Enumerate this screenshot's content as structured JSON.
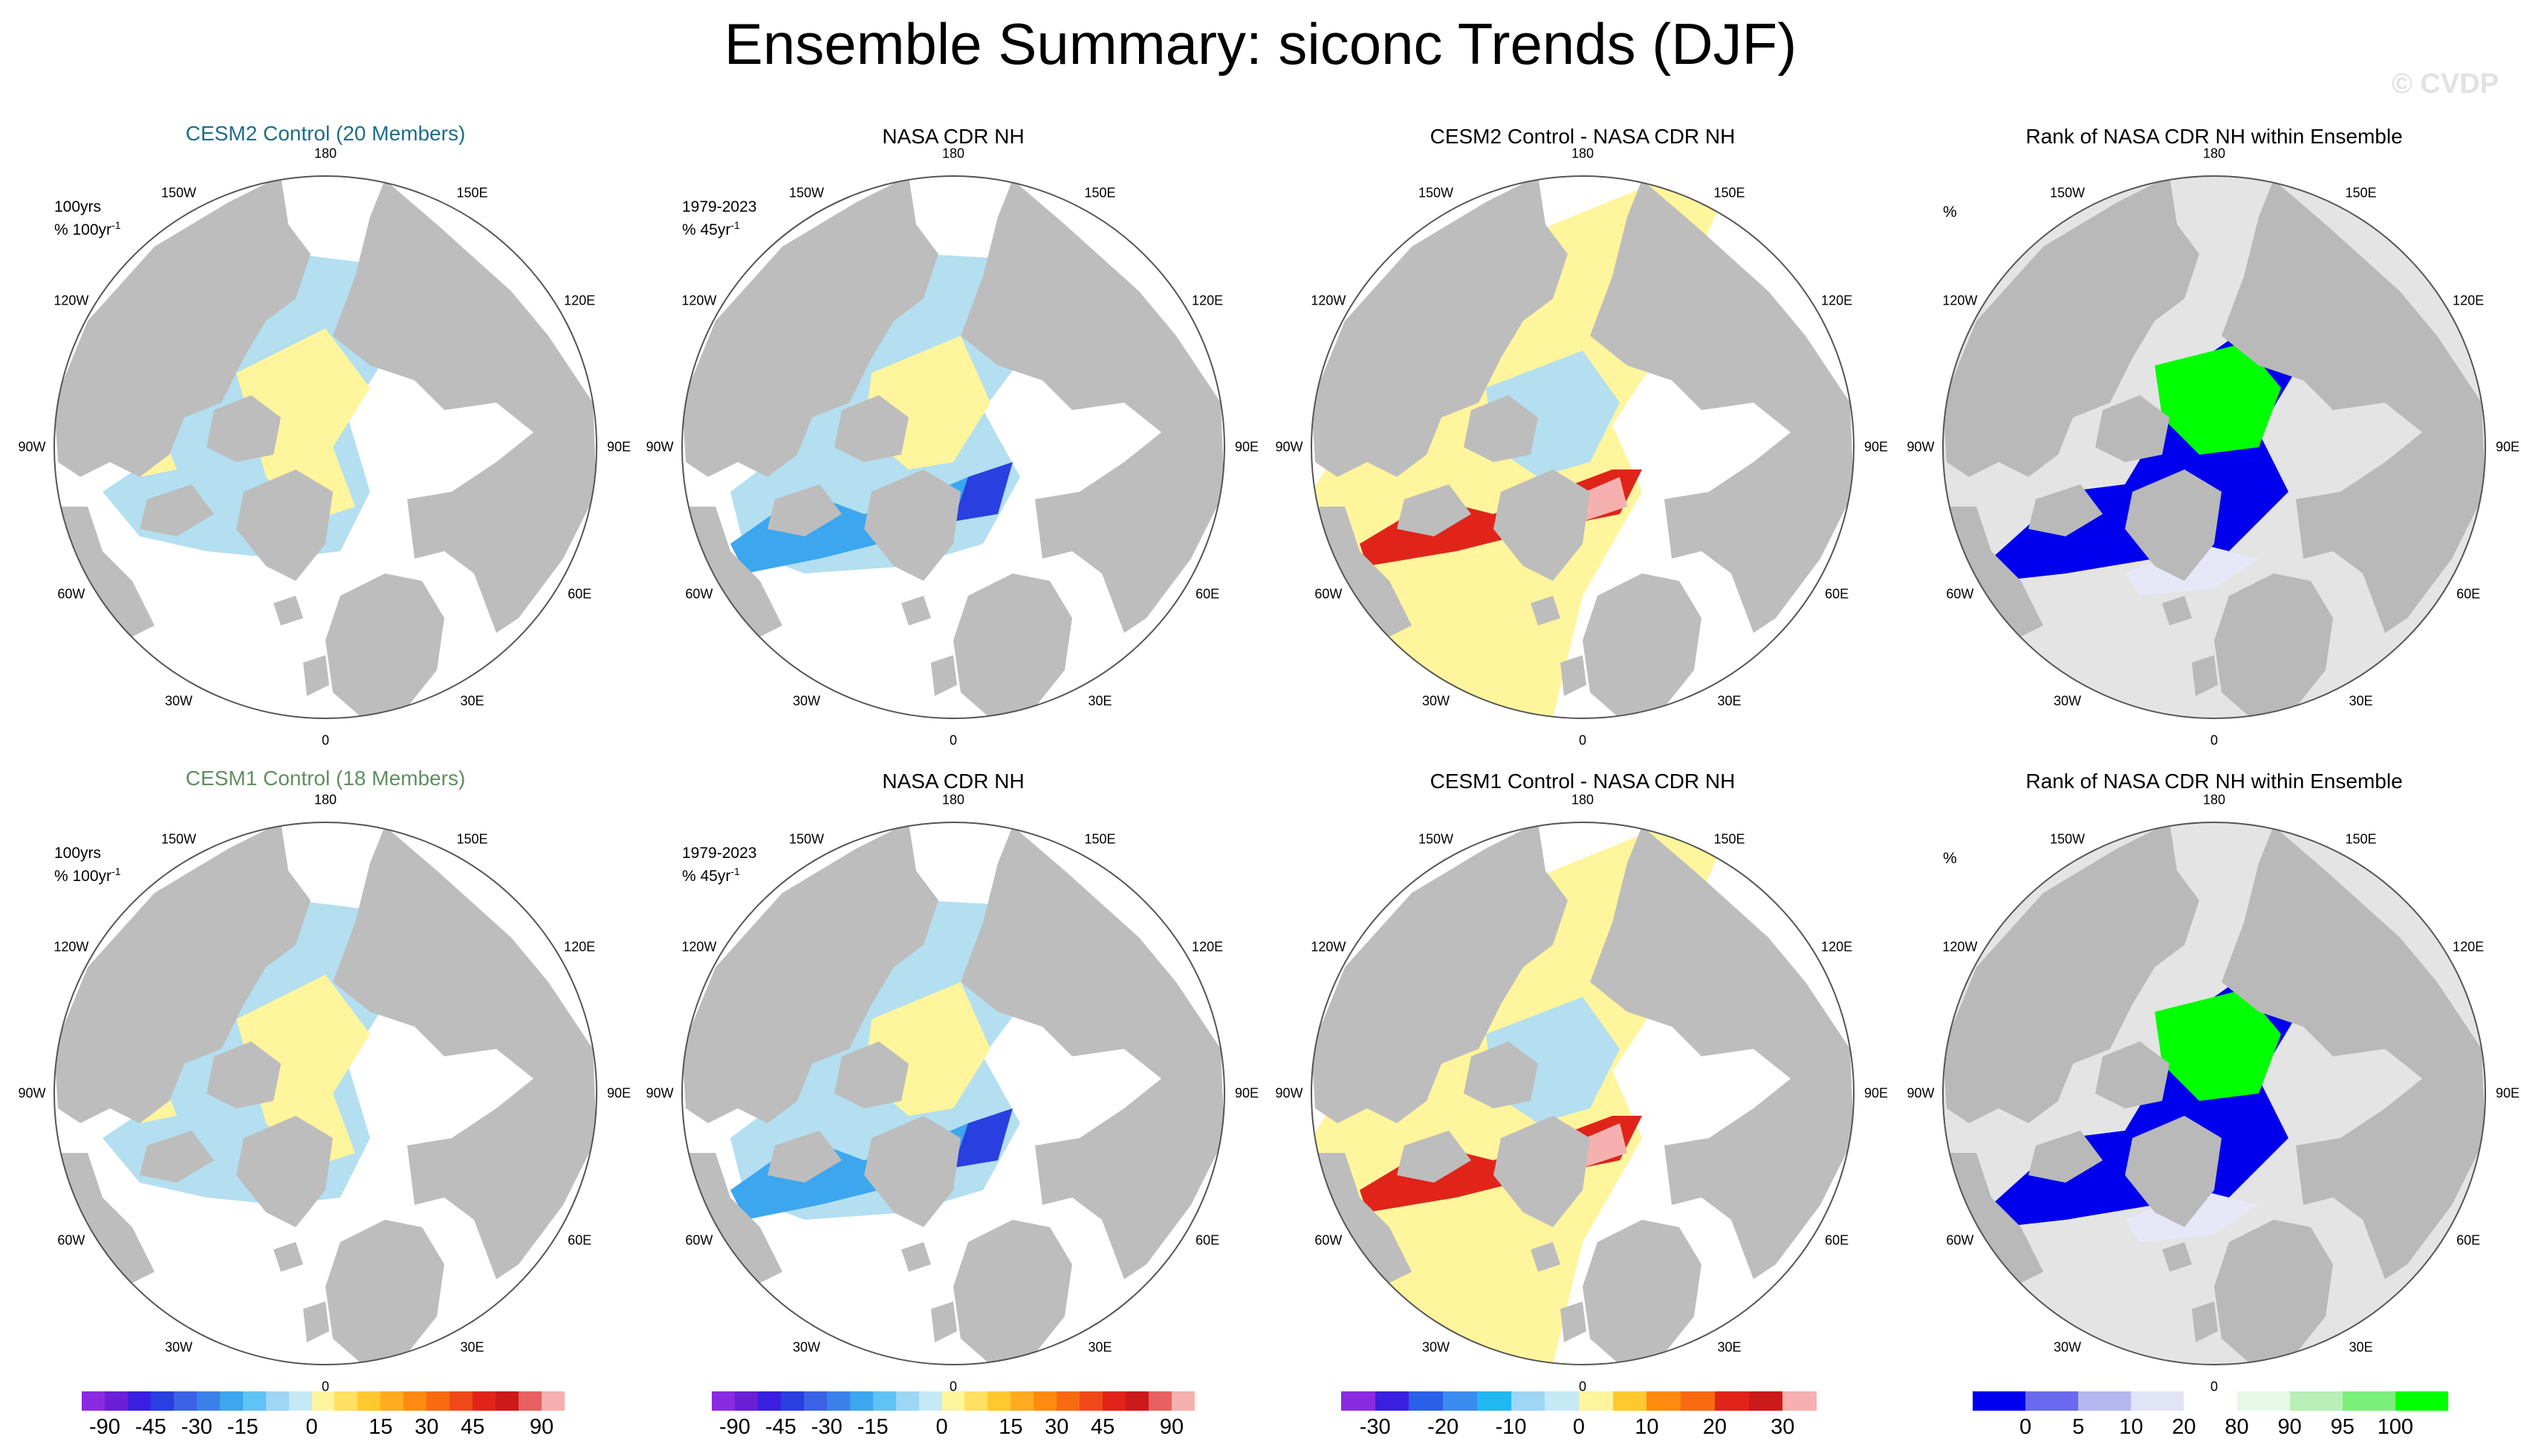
{
  "title": "Ensemble Summary: siconc Trends (DJF)",
  "watermark": "© CVDP",
  "lon_labels": [
    "180",
    "150E",
    "120E",
    "90E",
    "60E",
    "30E",
    "0",
    "30W",
    "60W",
    "90W",
    "120W",
    "150W"
  ],
  "rows": [
    {
      "panels": [
        {
          "title": "CESM2 Control (20 Members)",
          "style": "cesm2",
          "note_line1": "100yrs",
          "note_line2": "% 100yr",
          "note_sup": "-1",
          "kind": "model"
        },
        {
          "title": "NASA CDR NH",
          "style": "plain",
          "note_line1": "1979-2023",
          "note_line2": "% 45yr",
          "note_sup": "-1",
          "kind": "obs"
        },
        {
          "title": "CESM2 Control - NASA CDR NH",
          "style": "plain",
          "note_line1": "",
          "note_line2": "",
          "note_sup": "",
          "kind": "diff"
        },
        {
          "title": "Rank of NASA CDR NH within Ensemble",
          "style": "plain",
          "note_line1": "",
          "note_line2": "%",
          "note_sup": "",
          "kind": "rank"
        }
      ]
    },
    {
      "panels": [
        {
          "title": "CESM1 Control (18 Members)",
          "style": "cesm1",
          "note_line1": "100yrs",
          "note_line2": "% 100yr",
          "note_sup": "-1",
          "kind": "model"
        },
        {
          "title": "NASA CDR NH",
          "style": "plain",
          "note_line1": "1979-2023",
          "note_line2": "% 45yr",
          "note_sup": "-1",
          "kind": "obs"
        },
        {
          "title": "CESM1 Control - NASA CDR NH",
          "style": "plain",
          "note_line1": "",
          "note_line2": "",
          "note_sup": "",
          "kind": "diff"
        },
        {
          "title": "Rank of NASA CDR NH within Ensemble",
          "style": "plain",
          "note_line1": "",
          "note_line2": "%",
          "note_sup": "",
          "kind": "rank"
        }
      ]
    }
  ],
  "colors": {
    "land": "#bdbdbd",
    "ocean_nodata": "#ffffff",
    "rank_land": "#e4e4e4",
    "light_blue": "#b3dff0",
    "light_yellow": "#fff59d",
    "blue_mid": "#3ca6ef",
    "blue_dark": "#2a3fe0",
    "purple": "#6a1fd6",
    "orange": "#f9a030",
    "red": "#e0241a",
    "pink": "#f6b0b0",
    "rank_blue": "#0000ee",
    "rank_green": "#00ff00",
    "rank_pale": "#e6e8f8"
  },
  "chart_data": [
    {
      "type": "colorbar",
      "panel": "trend",
      "ticks": [
        "-90",
        "-45",
        "-30",
        "-15",
        "0",
        "15",
        "30",
        "45",
        "90"
      ],
      "colors": [
        "#8a2be2",
        "#6a1fd6",
        "#3a1fe0",
        "#2a3fe0",
        "#3a62e6",
        "#3a82ea",
        "#3ca6ef",
        "#5ec3f5",
        "#9fd6f5",
        "#c6e9f6",
        "#fff59d",
        "#ffe060",
        "#ffc82e",
        "#ffab20",
        "#ff8a10",
        "#f86a10",
        "#f04818",
        "#e0241a",
        "#cc1a1a",
        "#e86060",
        "#f6b0b0"
      ],
      "tick_boundaries": [
        1,
        3,
        5,
        7,
        10,
        13,
        15,
        17,
        20
      ]
    },
    {
      "type": "colorbar",
      "panel": "trend",
      "ticks": [
        "-90",
        "-45",
        "-30",
        "-15",
        "0",
        "15",
        "30",
        "45",
        "90"
      ],
      "colors": [
        "#8a2be2",
        "#6a1fd6",
        "#3a1fe0",
        "#2a3fe0",
        "#3a62e6",
        "#3a82ea",
        "#3ca6ef",
        "#5ec3f5",
        "#9fd6f5",
        "#c6e9f6",
        "#fff59d",
        "#ffe060",
        "#ffc82e",
        "#ffab20",
        "#ff8a10",
        "#f86a10",
        "#f04818",
        "#e0241a",
        "#cc1a1a",
        "#e86060",
        "#f6b0b0"
      ],
      "tick_boundaries": [
        1,
        3,
        5,
        7,
        10,
        13,
        15,
        17,
        20
      ]
    },
    {
      "type": "colorbar",
      "panel": "difference",
      "ticks": [
        "-30",
        "-20",
        "-10",
        "0",
        "10",
        "20",
        "30"
      ],
      "colors": [
        "#8a2be2",
        "#3a1fe0",
        "#2a5fe8",
        "#3a8cf0",
        "#20b8f0",
        "#9fd6f5",
        "#c6e9f6",
        "#fff59d",
        "#ffc82e",
        "#ff8a10",
        "#f86a10",
        "#e0241a",
        "#cc1a1a",
        "#f6b0b0"
      ],
      "tick_boundaries": [
        1,
        3,
        5,
        7,
        9,
        11,
        13
      ]
    },
    {
      "type": "colorbar",
      "panel": "rank",
      "ticks": [
        "0",
        "5",
        "10",
        "20",
        "80",
        "90",
        "95",
        "100"
      ],
      "colors": [
        "#0000ee",
        "#6a6af0",
        "#b6b6f0",
        "#e1e3f6",
        "#ffffff",
        "#e6f8e6",
        "#b8f0b8",
        "#7af07a",
        "#00ff00"
      ],
      "tick_boundaries": [
        1,
        2,
        3,
        4,
        5,
        6,
        7,
        8
      ]
    }
  ]
}
